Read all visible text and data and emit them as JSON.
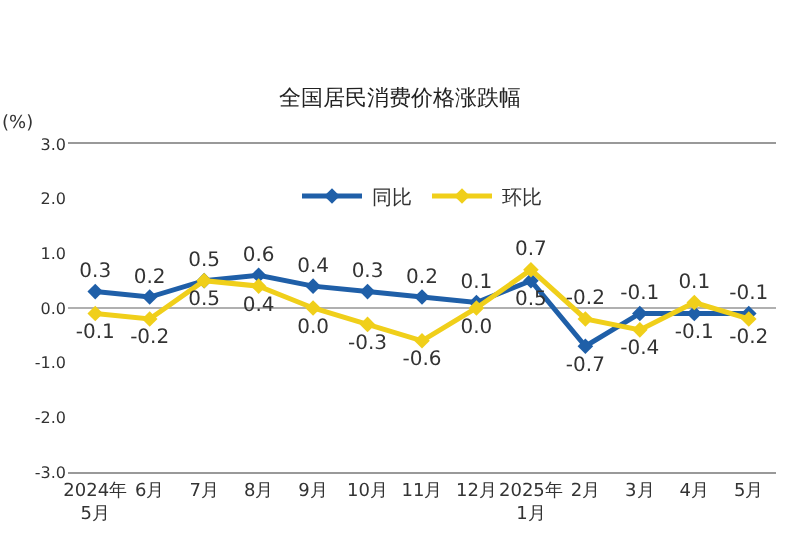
{
  "chart_data": {
    "type": "line",
    "title": "全国居民消费价格涨跌幅",
    "ylabel": "(%)",
    "categories": [
      "2024年\n5月",
      "6月",
      "7月",
      "8月",
      "9月",
      "10月",
      "11月",
      "12月",
      "2025年\n1月",
      "2月",
      "3月",
      "4月",
      "5月"
    ],
    "series": [
      {
        "name": "同比",
        "color": "#1f5fa8",
        "values": [
          0.3,
          0.2,
          0.5,
          0.6,
          0.4,
          0.3,
          0.2,
          0.1,
          0.5,
          -0.7,
          -0.1,
          -0.1,
          -0.1
        ],
        "value_labels": [
          "0.3",
          "0.2",
          "0.5",
          "0.6",
          "0.4",
          "0.3",
          "0.2",
          "0.1",
          "0.5",
          "-0.7",
          "-0.1",
          "-0.1",
          "-0.1"
        ]
      },
      {
        "name": "环比",
        "color": "#f0cf1a",
        "values": [
          -0.1,
          -0.2,
          0.5,
          0.4,
          0.0,
          -0.3,
          -0.6,
          0.0,
          0.7,
          -0.2,
          -0.4,
          0.1,
          -0.2
        ],
        "value_labels": [
          "-0.1",
          "-0.2",
          "0.5",
          "0.4",
          "0.0",
          "-0.3",
          "-0.6",
          "0.0",
          "0.7",
          "-0.2",
          "-0.4",
          "0.1",
          "-0.2"
        ]
      }
    ],
    "ylim": [
      -3,
      3
    ],
    "yticks": [
      {
        "value": -3,
        "label": "-3.0"
      },
      {
        "value": -2,
        "label": "-2.0"
      },
      {
        "value": -1,
        "label": "-1.0"
      },
      {
        "value": 0,
        "label": "0.0"
      },
      {
        "value": 1,
        "label": "1.0"
      },
      {
        "value": 2,
        "label": "2.0"
      },
      {
        "value": 3,
        "label": "3.0"
      }
    ],
    "ref_lines": [
      {
        "axis": "y",
        "value": 0,
        "color": "#b0b0b0"
      }
    ],
    "legend": "top",
    "marker": "diamond",
    "grid": false
  }
}
